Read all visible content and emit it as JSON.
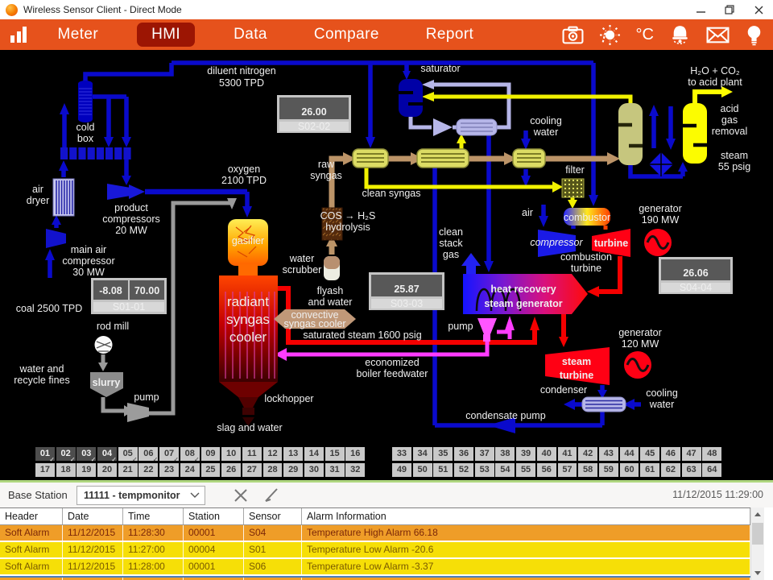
{
  "window": {
    "title": "Wireless Sensor Client - Direct Mode"
  },
  "navbar": {
    "app_icon": "bar-chart-icon",
    "items": [
      {
        "label": "Meter",
        "active": false
      },
      {
        "label": "HMI",
        "active": true
      },
      {
        "label": "Data",
        "active": false
      },
      {
        "label": "Compare",
        "active": false
      },
      {
        "label": "Report",
        "active": false
      }
    ],
    "temperature_unit": "°C",
    "action_icons": [
      "camera-icon",
      "brightness-icon",
      "temperature-unit",
      "alarm-bell-icon",
      "mail-icon",
      "bulb-icon"
    ]
  },
  "diagram": {
    "labels": {
      "diluent_nitrogen": [
        "diluent nitrogen",
        "5300 TPD"
      ],
      "cold_box": [
        "cold",
        "box"
      ],
      "air_dryer": [
        "air",
        "dryer"
      ],
      "product_compressors": [
        "product",
        "compressors",
        "20 MW"
      ],
      "main_air_compressor": [
        "main air",
        "compressor",
        "30 MW"
      ],
      "coal": "coal 2500 TPD",
      "rod_mill": "rod mill",
      "water_recycle_fines": [
        "water and",
        "recycle fines"
      ],
      "slurry": "slurry",
      "slurry_pump": "pump",
      "oxygen": [
        "oxygen",
        "2100 TPD"
      ],
      "gasifier": "gasifier",
      "radiant_syngas_cooler": [
        "radiant",
        "syngas",
        "cooler"
      ],
      "lockhopper": "lockhopper",
      "slag_and_water": "slag and water",
      "water_scrubber": [
        "water",
        "scrubber"
      ],
      "flyash_and_water": [
        "flyash",
        "and water"
      ],
      "convective_syngas_cooler": [
        "convective",
        "syngas cooler"
      ],
      "cos_hydrolysis": [
        "COS → H₂S",
        "hydrolysis"
      ],
      "raw_syngas": [
        "raw",
        "syngas"
      ],
      "clean_syngas": "clean syngas",
      "saturator": "saturator",
      "cooling_water_top": [
        "cooling",
        "water"
      ],
      "filter": "filter",
      "air_turbine": "air",
      "combustor": "combustor",
      "compressor": "compressor",
      "turbine": "turbine",
      "combustion_turbine": [
        "combustion",
        "turbine"
      ],
      "generator_190": [
        "generator",
        "190 MW"
      ],
      "clean_stack_gas": [
        "clean",
        "stack",
        "gas"
      ],
      "hrsg": [
        "heat recovery",
        "steam generator"
      ],
      "feed_pump": "pump",
      "saturated_steam": "saturated steam 1600 psig",
      "economized_feedwater": [
        "economized",
        "boiler feedwater"
      ],
      "steam_turbine": [
        "steam",
        "turbine"
      ],
      "generator_120": [
        "generator",
        "120 MW"
      ],
      "condenser": "condenser",
      "cooling_water_right": [
        "cooling",
        "water"
      ],
      "condensate_pump": "condensate pump",
      "h2o_co2": [
        "H₂O + CO₂",
        "to acid plant"
      ],
      "acid_gas_removal": [
        "acid",
        "gas",
        "removal"
      ],
      "steam_55": [
        "steam",
        "55 psig"
      ]
    },
    "sensor_displays": [
      {
        "id": "S02-02",
        "values": [
          "26.00"
        ]
      },
      {
        "id": "S01-01",
        "values": [
          "-8.08",
          "70.00"
        ]
      },
      {
        "id": "S03-03",
        "values": [
          "25.87"
        ]
      },
      {
        "id": "S04-04",
        "values": [
          "26.06"
        ]
      }
    ]
  },
  "sensor_grid": {
    "check_glyph": "✓",
    "selected": [
      "01",
      "02",
      "03",
      "04"
    ],
    "checked": [
      "01",
      "02",
      "03",
      "04",
      "05",
      "06",
      "07",
      "08"
    ],
    "left_rows": [
      [
        "01",
        "02",
        "03",
        "04",
        "05",
        "06",
        "07",
        "08",
        "09",
        "10",
        "11",
        "12",
        "13",
        "14",
        "15",
        "16"
      ],
      [
        "17",
        "18",
        "19",
        "20",
        "21",
        "22",
        "23",
        "24",
        "25",
        "26",
        "27",
        "28",
        "29",
        "30",
        "31",
        "32"
      ]
    ],
    "right_rows": [
      [
        "33",
        "34",
        "35",
        "36",
        "37",
        "38",
        "39",
        "40",
        "41",
        "42",
        "43",
        "44",
        "45",
        "46",
        "47",
        "48"
      ],
      [
        "49",
        "50",
        "51",
        "52",
        "53",
        "54",
        "55",
        "56",
        "57",
        "58",
        "59",
        "60",
        "61",
        "62",
        "63",
        "64"
      ]
    ]
  },
  "base_station": {
    "label": "Base Station",
    "selected_option": "11111 - tempmonitor",
    "timestamp": "11/12/2015 11:29:00"
  },
  "alarm_table": {
    "columns": [
      "Header",
      "Date",
      "Time",
      "Station",
      "Sensor",
      "Alarm Information"
    ],
    "rows": [
      {
        "severity": "high",
        "partial": false,
        "cells": [
          "Soft Alarm",
          "11/12/2015",
          "11:28:30",
          "00001",
          "S04",
          "Temperature High Alarm 66.18"
        ]
      },
      {
        "severity": "low",
        "partial": false,
        "cells": [
          "Soft Alarm",
          "11/12/2015",
          "11:27:00",
          "00004",
          "S01",
          "Temperature Low Alarm -20.6"
        ]
      },
      {
        "severity": "low",
        "partial": false,
        "cells": [
          "Soft Alarm",
          "11/12/2015",
          "11:28:00",
          "00001",
          "S06",
          "Temperature Low Alarm -3.37"
        ]
      },
      {
        "severity": "high",
        "partial": true,
        "cells": [
          "",
          "",
          "",
          "",
          "",
          ""
        ]
      }
    ]
  },
  "colors": {
    "navbar_orange": "#E6521C",
    "active_tab_red": "#9C1503",
    "alarm_high_row": "#EF9D28",
    "alarm_low_row": "#F6DF07",
    "sensor_value_green": "#9CD52E",
    "sensor_value_amber": "#E8B028",
    "grid_selected_gray": "#4D4D4D",
    "basebar_accent_green": "#AFD77F"
  }
}
